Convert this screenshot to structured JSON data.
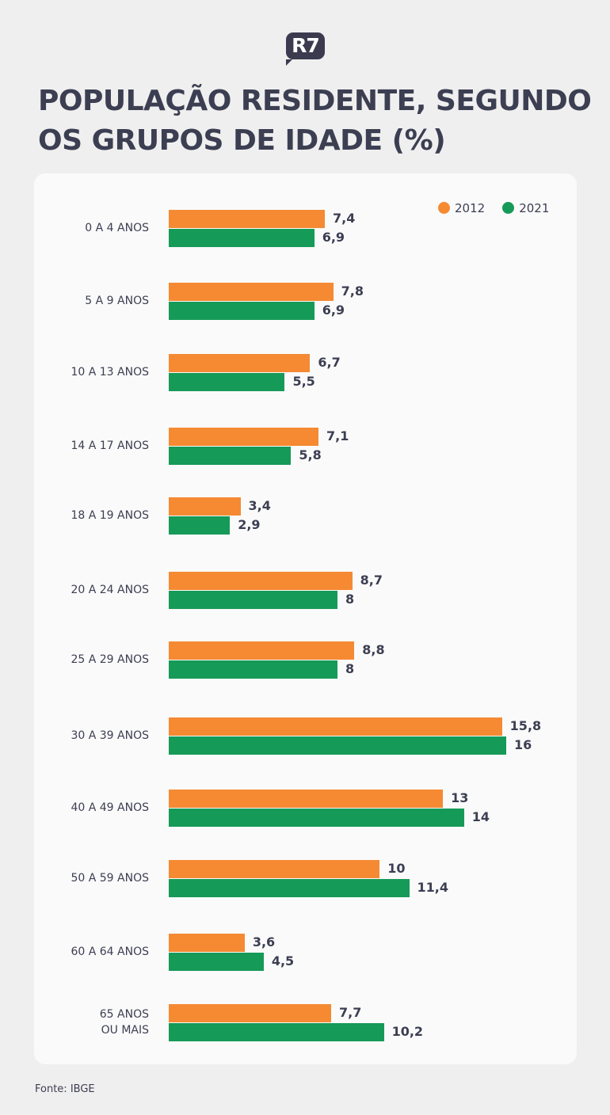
{
  "logo": "R7",
  "title": "POPULAÇÃO RESIDENTE, SEGUNDO OS GRUPOS DE IDADE (%)",
  "source": "Fonte: IBGE",
  "chart_data": {
    "type": "bar",
    "orientation": "horizontal",
    "title": "POPULAÇÃO RESIDENTE, SEGUNDO OS GRUPOS DE IDADE (%)",
    "categories": [
      "0 A 4 ANOS",
      "5 A 9 ANOS",
      "10 A 13 ANOS",
      "14 A 17 ANOS",
      "18 A 19 ANOS",
      "20 A 24 ANOS",
      "25 A 29 ANOS",
      "30 A 39 ANOS",
      "40 A 49 ANOS",
      "50 A 59 ANOS",
      "60 A 64 ANOS",
      "65 ANOS\nOU MAIS"
    ],
    "series": [
      {
        "name": "2012",
        "color": "#f58a33",
        "values": [
          7.4,
          7.8,
          6.7,
          7.1,
          3.4,
          8.7,
          8.8,
          15.8,
          13,
          10,
          3.6,
          7.7
        ],
        "labels": [
          "7,4",
          "7,8",
          "6,7",
          "7,1",
          "3,4",
          "8,7",
          "8,8",
          "15,8",
          "13",
          "10",
          "3,6",
          "7,7"
        ]
      },
      {
        "name": "2021",
        "color": "#169a58",
        "values": [
          6.9,
          6.9,
          5.5,
          5.8,
          2.9,
          8,
          8,
          16,
          14,
          11.4,
          4.5,
          10.2
        ],
        "labels": [
          "6,9",
          "6,9",
          "5,5",
          "5,8",
          "2,9",
          "8",
          "8",
          "16",
          "14",
          "11,4",
          "4,5",
          "10,2"
        ]
      }
    ],
    "legend": "top-right",
    "grid": false
  }
}
